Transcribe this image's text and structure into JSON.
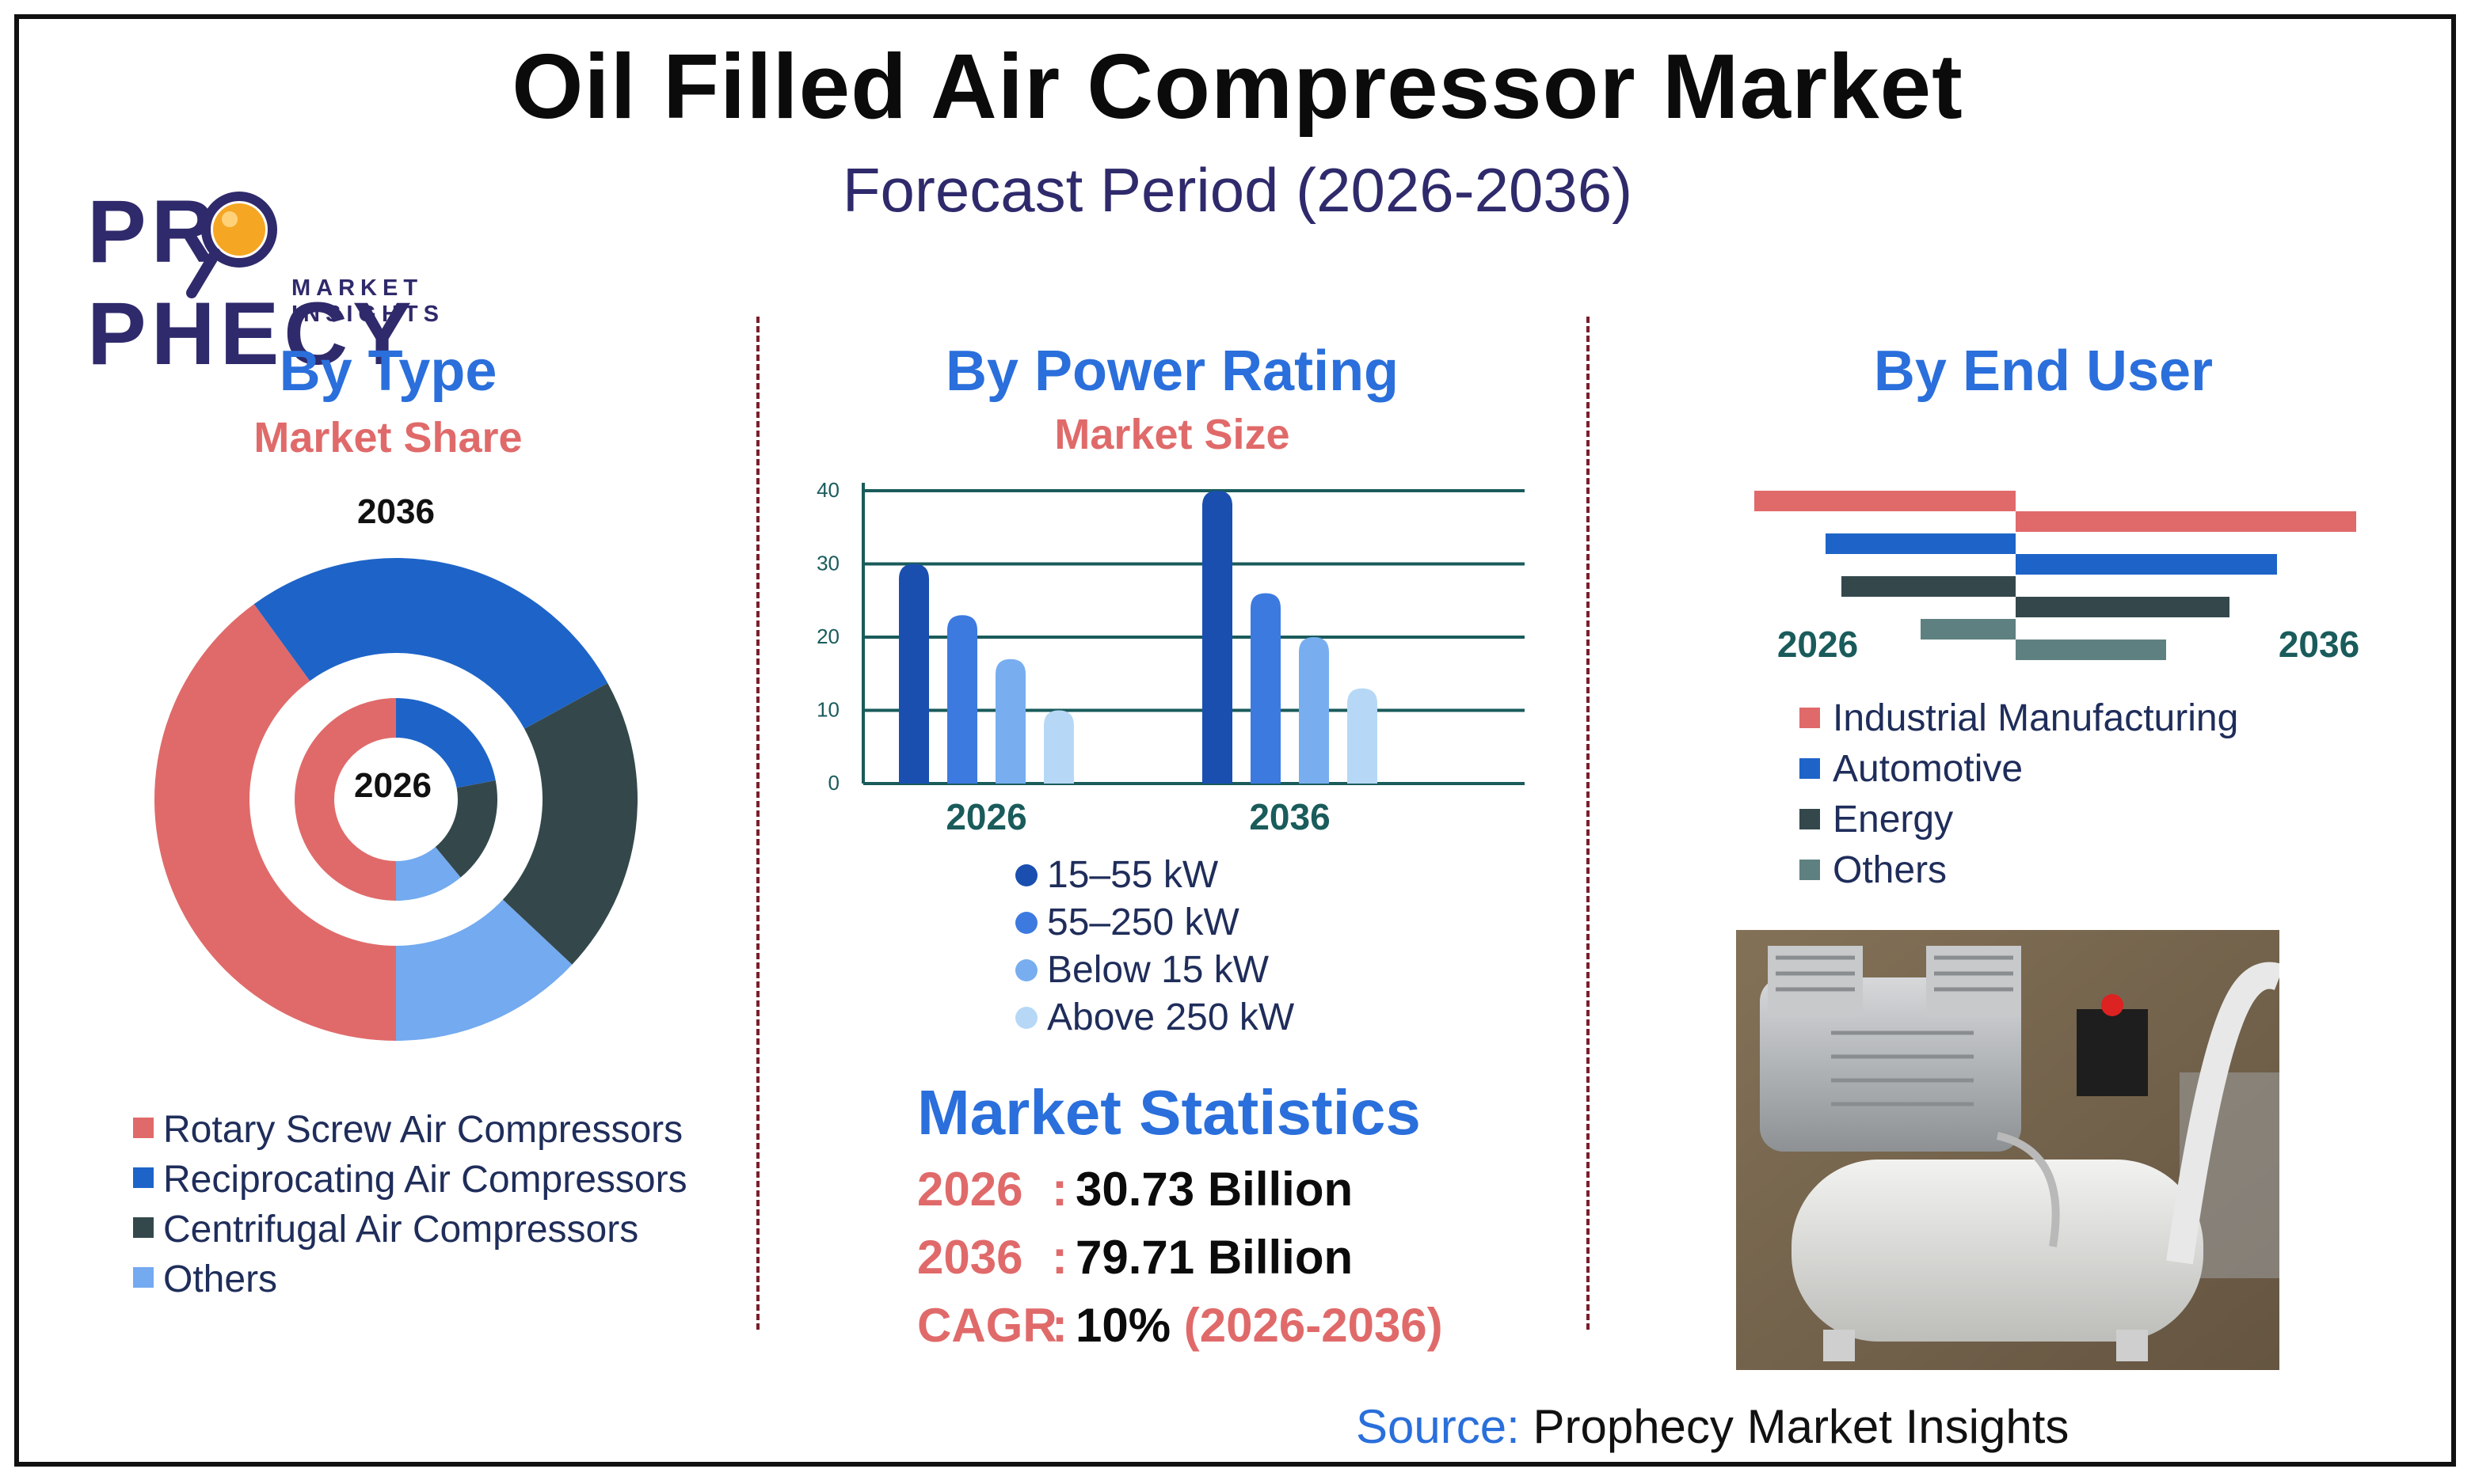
{
  "header": {
    "title": "Oil Filled Air Compressor Market",
    "subtitle": "Forecast Period (2026-2036)"
  },
  "logo": {
    "word_pre": "PR",
    "word_post": "PHECY",
    "tagline": "MARKET INSIGHTS"
  },
  "colors": {
    "red": "#e06a6a",
    "blue": "#1e64c8",
    "dark": "#34484c",
    "light_blue": "#73aaf0",
    "title_blue": "#2a6fdb",
    "navy": "#2f2a6b",
    "teal_axis": "#1a5b5b"
  },
  "by_type": {
    "title": "By Type",
    "subtitle": "Market Share",
    "outer_label": "2036",
    "inner_label": "2026",
    "legend": [
      {
        "label": "Rotary Screw Air Compressors",
        "color": "#e06a6a"
      },
      {
        "label": "Reciprocating Air Compressors",
        "color": "#1e64c8"
      },
      {
        "label": "Centrifugal Air Compressors",
        "color": "#34484c"
      },
      {
        "label": "Others",
        "color": "#73aaf0"
      }
    ]
  },
  "by_power": {
    "title": "By Power Rating",
    "subtitle": "Market Size",
    "legend": [
      {
        "label": "15–55 kW",
        "color": "#1a4fb0"
      },
      {
        "label": "55–250 kW",
        "color": "#3d7ae0"
      },
      {
        "label": "Below 15 kW",
        "color": "#78aef0"
      },
      {
        "label": "Above 250 kW",
        "color": "#b6d8f6"
      }
    ]
  },
  "by_end_user": {
    "title": "By End User",
    "label_left": "2026",
    "label_right": "2036",
    "legend": [
      {
        "label": "Industrial Manufacturing",
        "color": "#e06a6a"
      },
      {
        "label": "Automotive",
        "color": "#1e64c8"
      },
      {
        "label": "Energy",
        "color": "#34484c"
      },
      {
        "label": "Others",
        "color": "#5f8080"
      }
    ]
  },
  "stats": {
    "title": "Market Statistics",
    "rows": [
      {
        "key": "2026",
        "value": "30.73 Billion",
        "extra": ""
      },
      {
        "key": "2036",
        "value": "79.71 Billion",
        "extra": ""
      },
      {
        "key": "CAGR",
        "value": "10%",
        "extra": "(2026-2036)"
      }
    ]
  },
  "source": {
    "label": "Source:",
    "text": "Prophecy Market Insights"
  },
  "chart_data": [
    {
      "type": "pie",
      "id": "type-donut",
      "title": "By Type",
      "subtitle": "Market Share",
      "categories": [
        "Rotary Screw Air Compressors",
        "Reciprocating Air Compressors",
        "Centrifugal Air Compressors",
        "Others"
      ],
      "series": [
        {
          "name": "2036",
          "values": [
            40,
            27,
            20,
            13
          ]
        },
        {
          "name": "2026",
          "values": [
            50,
            22,
            17,
            11
          ]
        }
      ]
    },
    {
      "type": "bar",
      "id": "power-bars",
      "title": "By Power Rating",
      "subtitle": "Market Size",
      "categories": [
        "2026",
        "2036"
      ],
      "ylim": [
        0,
        40
      ],
      "yticks": [
        0,
        10,
        20,
        30,
        40
      ],
      "series": [
        {
          "name": "15–55 kW",
          "values": [
            30,
            40
          ]
        },
        {
          "name": "55–250 kW",
          "values": [
            23,
            26
          ]
        },
        {
          "name": "Below 15 kW",
          "values": [
            17,
            20
          ]
        },
        {
          "name": "Above 250 kW",
          "values": [
            10,
            13
          ]
        }
      ]
    },
    {
      "type": "bar",
      "id": "enduser-butterfly",
      "title": "By End User",
      "categories": [
        "Industrial Manufacturing",
        "Automotive",
        "Energy",
        "Others"
      ],
      "series": [
        {
          "name": "2026",
          "values": [
            33,
            24,
            22,
            12
          ]
        },
        {
          "name": "2036",
          "values": [
            43,
            33,
            27,
            19
          ]
        }
      ]
    }
  ]
}
